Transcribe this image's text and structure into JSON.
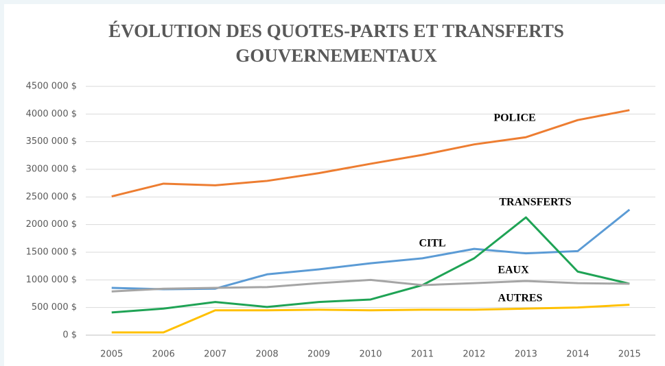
{
  "chart_data": {
    "type": "line",
    "title": [
      "ÉVOLUTION DES QUOTES-PARTS ET TRANSFERTS",
      "GOUVERNEMENTAUX"
    ],
    "categories": [
      "2005",
      "2006",
      "2007",
      "2008",
      "2009",
      "2010",
      "2011",
      "2012",
      "2013",
      "2014",
      "2015"
    ],
    "series": [
      {
        "name": "POLICE",
        "color": "#ed7d31",
        "values": [
          2510000,
          2740000,
          2710000,
          2790000,
          2930000,
          3100000,
          3260000,
          3450000,
          3580000,
          3890000,
          4070000
        ]
      },
      {
        "name": "CITL",
        "color": "#5b9bd5",
        "values": [
          855000,
          830000,
          840000,
          1100000,
          1190000,
          1300000,
          1390000,
          1560000,
          1480000,
          1520000,
          2270000
        ]
      },
      {
        "name": "TRANSFERTS",
        "color": "#1fa355",
        "values": [
          410000,
          480000,
          600000,
          510000,
          600000,
          645000,
          905000,
          1390000,
          2130000,
          1150000,
          930000
        ]
      },
      {
        "name": "EAUX",
        "color": "#a5a5a5",
        "values": [
          790000,
          840000,
          855000,
          870000,
          940000,
          1000000,
          905000,
          940000,
          980000,
          940000,
          930000
        ]
      },
      {
        "name": "AUTRES",
        "color": "#ffc000",
        "values": [
          50000,
          50000,
          450000,
          450000,
          460000,
          450000,
          460000,
          460000,
          480000,
          500000,
          550000
        ]
      }
    ],
    "ylim": [
      0,
      4500000
    ],
    "yticks": [
      {
        "value": 0,
        "label": "0 $"
      },
      {
        "value": 500000,
        "label": "500 000 $"
      },
      {
        "value": 1000000,
        "label": "1000 000 $"
      },
      {
        "value": 1500000,
        "label": "1500 000 $"
      },
      {
        "value": 2000000,
        "label": "2000 000 $"
      },
      {
        "value": 2500000,
        "label": "2500 000 $"
      },
      {
        "value": 3000000,
        "label": "3000 000 $"
      },
      {
        "value": 3500000,
        "label": "3500 000 $"
      },
      {
        "value": 4000000,
        "label": "4000 000 $"
      },
      {
        "value": 4500000,
        "label": "4500 000 $"
      }
    ],
    "grid": true
  }
}
